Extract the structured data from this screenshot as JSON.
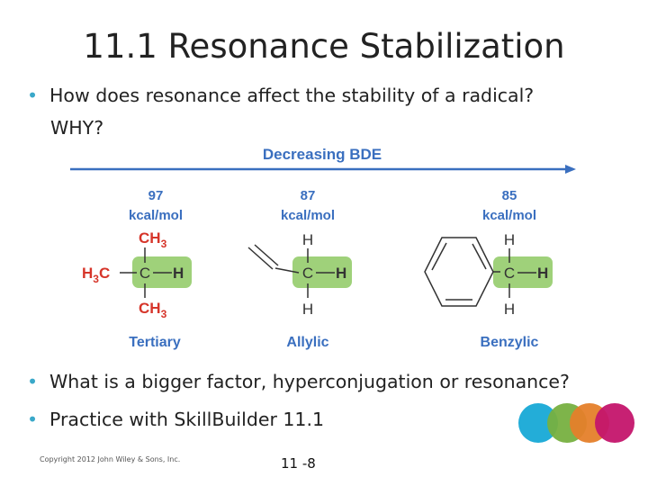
{
  "slide": {
    "title": "11.1 Resonance Stabilization",
    "bullets": [
      {
        "line1": "How does resonance affect the stability of a radical?",
        "line2": "WHY?"
      },
      {
        "line1": "What is a bigger factor, hyperconjugation or resonance?"
      },
      {
        "line1": "Practice with SkillBuilder 11.1"
      }
    ],
    "bullet_symbol": "•",
    "footer": {
      "copyright": "Copyright 2012 John Wiley & Sons, Inc.",
      "page": "11 -8"
    }
  },
  "figure": {
    "arrow_label": "Decreasing BDE",
    "molecules": [
      {
        "value": "97",
        "unit": "kcal/mol",
        "name": "Tertiary"
      },
      {
        "value": "87",
        "unit": "kcal/mol",
        "name": "Allylic"
      },
      {
        "value": "85",
        "unit": "kcal/mol",
        "name": "Benzylic"
      }
    ],
    "atoms": {
      "C": "C",
      "H": "H",
      "CH": "CH",
      "sub3": "3",
      "H3": "H",
      "C_after": "C"
    }
  },
  "colors": {
    "accent_blue": "#3a6fbf",
    "label_red": "#d6352a",
    "highlight_green": "#9fd17a",
    "bullet_teal": "#3aa8c9",
    "circles": [
      "#17a9d6",
      "#77b040",
      "#e5802a",
      "#c4156b"
    ]
  }
}
